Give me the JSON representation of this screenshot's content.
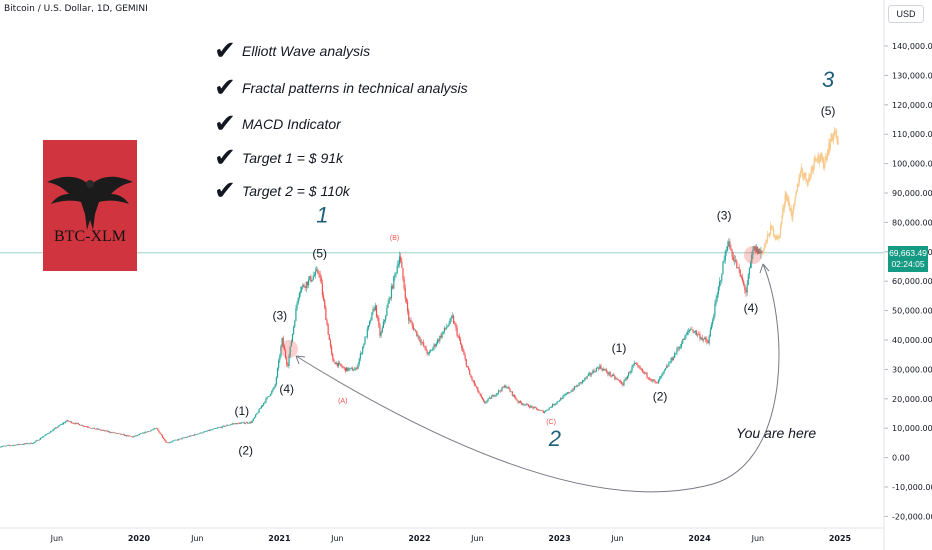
{
  "header": {
    "symbol": "Bitcoin / U.S. Dollar, 1D, GEMINI"
  },
  "currency": "USD",
  "checklist": [
    "Elliott Wave analysis",
    "Fractal patterns in technical analysis",
    "MACD Indicator",
    "Target 1 = $ 91k",
    "Target 2 = $ 110k"
  ],
  "logo": {
    "text": "BTC-XLM",
    "color": "#d0353f"
  },
  "price_label": {
    "price": "69,663.49",
    "countdown": "02:24:05",
    "color": "#159a84"
  },
  "annotations": {
    "you_are_here": "You are here"
  },
  "colors": {
    "up": "#26a69a",
    "down": "#ef5350",
    "projection": "#f7c98b",
    "wave": "#1f5f7a"
  },
  "chart_data": {
    "type": "candlestick",
    "title": "Bitcoin / U.S. Dollar, 1D, GEMINI",
    "ylim": [
      -20000,
      150000
    ],
    "y_ticks": [
      140000,
      130000,
      120000,
      110000,
      100000,
      90000,
      80000,
      70000,
      60000,
      50000,
      40000,
      30000,
      20000,
      10000,
      0,
      -10000,
      -20000
    ],
    "y_tick_labels": [
      "140,000.00",
      "130,000.00",
      "120,000.00",
      "110,000.00",
      "100,000.00",
      "90,000.00",
      "80,000.00",
      "70,000.00",
      "60,000.00",
      "50,000.00",
      "40,000.00",
      "30,000.00",
      "20,000.00",
      "10,000.00",
      "0.00",
      "-10,000.00",
      "-20,000.00"
    ],
    "x_tick_labels": [
      "Jun",
      "2020",
      "Jun",
      "2021",
      "Jun",
      "2022",
      "Jun",
      "2023",
      "Jun",
      "2024",
      "Jun",
      "2025"
    ],
    "x_tick_dates": [
      "2019-06-01",
      "2020-01-01",
      "2020-06-01",
      "2021-01-01",
      "2021-06-01",
      "2022-01-01",
      "2022-06-01",
      "2023-01-01",
      "2023-06-01",
      "2024-01-01",
      "2024-06-01",
      "2025-01-01"
    ],
    "current_price": 69663.49,
    "price_path": [
      [
        "2019-01-01",
        3700
      ],
      [
        "2019-04-01",
        5000
      ],
      [
        "2019-06-26",
        12500
      ],
      [
        "2019-09-01",
        10000
      ],
      [
        "2019-12-15",
        7000
      ],
      [
        "2020-02-15",
        10000
      ],
      [
        "2020-03-13",
        5000
      ],
      [
        "2020-07-01",
        9200
      ],
      [
        "2020-09-01",
        11500
      ],
      [
        "2020-10-20",
        12000
      ],
      [
        "2020-11-20",
        18500
      ],
      [
        "2020-12-20",
        24000
      ],
      [
        "2021-01-08",
        40000
      ],
      [
        "2021-01-22",
        31000
      ],
      [
        "2021-02-21",
        57000
      ],
      [
        "2021-04-14",
        63500
      ],
      [
        "2021-05-19",
        33000
      ],
      [
        "2021-06-22",
        30000
      ],
      [
        "2021-07-20",
        30000
      ],
      [
        "2021-09-07",
        52000
      ],
      [
        "2021-09-21",
        41000
      ],
      [
        "2021-11-10",
        68800
      ],
      [
        "2021-12-04",
        47000
      ],
      [
        "2022-01-24",
        35000
      ],
      [
        "2022-03-28",
        47500
      ],
      [
        "2022-05-12",
        28000
      ],
      [
        "2022-06-18",
        18500
      ],
      [
        "2022-08-14",
        24500
      ],
      [
        "2022-09-15",
        19000
      ],
      [
        "2022-11-21",
        15500
      ],
      [
        "2023-01-14",
        21000
      ],
      [
        "2023-02-21",
        25000
      ],
      [
        "2023-04-14",
        31000
      ],
      [
        "2023-06-15",
        25000
      ],
      [
        "2023-07-14",
        31800
      ],
      [
        "2023-09-11",
        25000
      ],
      [
        "2023-10-25",
        34500
      ],
      [
        "2023-12-08",
        44000
      ],
      [
        "2024-01-23",
        39000
      ],
      [
        "2024-03-14",
        73500
      ],
      [
        "2024-05-01",
        56500
      ],
      [
        "2024-05-20",
        71000
      ],
      [
        "2024-06-12",
        69663
      ]
    ],
    "projection_path": [
      [
        "2024-06-12",
        69663
      ],
      [
        "2024-07-05",
        78000
      ],
      [
        "2024-07-25",
        74000
      ],
      [
        "2024-08-12",
        90000
      ],
      [
        "2024-08-30",
        82000
      ],
      [
        "2024-09-20",
        98000
      ],
      [
        "2024-10-10",
        94000
      ],
      [
        "2024-10-30",
        103000
      ],
      [
        "2024-11-20",
        100000
      ],
      [
        "2024-12-08",
        108000
      ],
      [
        "2024-12-18",
        111000
      ],
      [
        "2024-12-28",
        106000
      ]
    ],
    "wave_labels": [
      {
        "text": "(1)",
        "date": "2020-09-25",
        "price": 14500
      },
      {
        "text": "(2)",
        "date": "2020-10-05",
        "price": 1000
      },
      {
        "text": "(3)",
        "date": "2021-01-02",
        "price": 47000
      },
      {
        "text": "(4)",
        "date": "2021-01-20",
        "price": 22000
      },
      {
        "text": "(5)",
        "date": "2021-04-16",
        "price": 68000
      },
      {
        "text": "1",
        "date": "2021-04-23",
        "price": 80000,
        "big": true
      },
      {
        "text": "(A)",
        "date": "2021-06-15",
        "price": 18500,
        "red": true
      },
      {
        "text": "(B)",
        "date": "2021-10-28",
        "price": 74000,
        "red": true
      },
      {
        "text": "(C)",
        "date": "2022-12-10",
        "price": 11500,
        "red": true
      },
      {
        "text": "2",
        "date": "2022-12-20",
        "price": 4000,
        "big": true
      },
      {
        "text": "(1)",
        "date": "2023-06-05",
        "price": 36000
      },
      {
        "text": "(2)",
        "date": "2023-09-20",
        "price": 19500
      },
      {
        "text": "(3)",
        "date": "2024-03-05",
        "price": 81000
      },
      {
        "text": "(4)",
        "date": "2024-05-14",
        "price": 49500
      },
      {
        "text": "(5)",
        "date": "2024-12-01",
        "price": 116500
      },
      {
        "text": "3",
        "date": "2024-12-01",
        "price": 126000,
        "big": true
      }
    ]
  }
}
